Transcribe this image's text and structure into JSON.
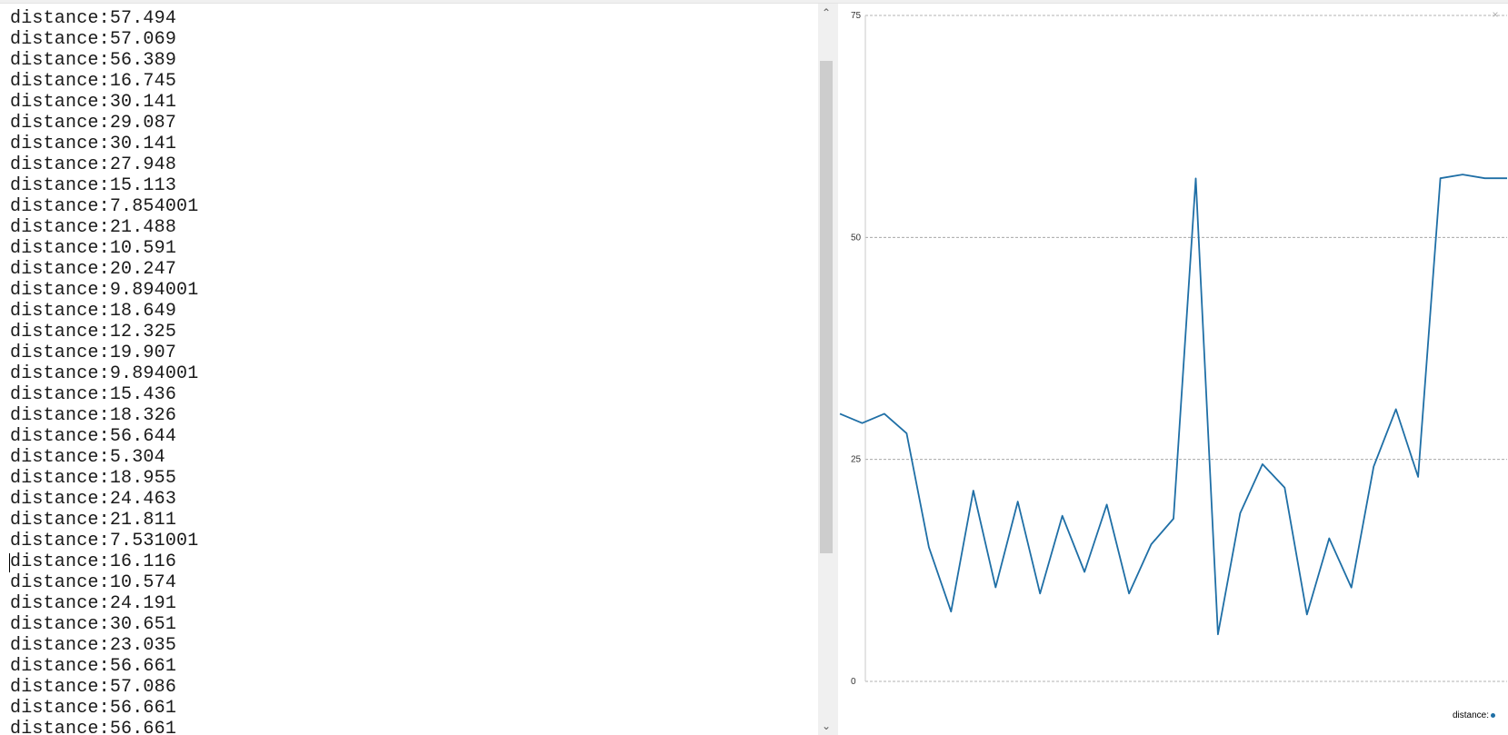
{
  "serial_monitor": {
    "lines": [
      "distance:57.494",
      "distance:57.069",
      "distance:56.389",
      "distance:16.745",
      "distance:30.141",
      "distance:29.087",
      "distance:30.141",
      "distance:27.948",
      "distance:15.113",
      "distance:7.854001",
      "distance:21.488",
      "distance:10.591",
      "distance:20.247",
      "distance:9.894001",
      "distance:18.649",
      "distance:12.325",
      "distance:19.907",
      "distance:9.894001",
      "distance:15.436",
      "distance:18.326",
      "distance:56.644",
      "distance:5.304",
      "distance:18.955",
      "distance:24.463",
      "distance:21.811",
      "distance:7.531001",
      "distance:16.116",
      "distance:10.574",
      "distance:24.191",
      "distance:30.651",
      "distance:23.035",
      "distance:56.661",
      "distance:57.086",
      "distance:56.661",
      "distance:56.661"
    ]
  },
  "scrollbar": {
    "up_icon": "chevron-up-icon",
    "down_icon": "chevron-down-icon"
  },
  "plotter": {
    "close_icon": "close-icon",
    "legend_label": "distance:",
    "line_color": "#1f6fa6"
  },
  "chart_data": {
    "type": "line",
    "ylim": [
      0,
      75
    ],
    "yticks": [
      "0",
      "25",
      "50",
      "75"
    ],
    "grid": true,
    "legend_position": "bottom-right",
    "series": [
      {
        "name": "distance:",
        "values": [
          30.141,
          29.087,
          30.141,
          27.948,
          15.113,
          7.854001,
          21.488,
          10.591,
          20.247,
          9.894001,
          18.649,
          12.325,
          19.907,
          9.894001,
          15.436,
          18.326,
          56.644,
          5.304,
          18.955,
          24.463,
          21.811,
          7.531001,
          16.116,
          10.574,
          24.191,
          30.651,
          23.035,
          56.661,
          57.086,
          56.661,
          56.661
        ]
      }
    ]
  }
}
